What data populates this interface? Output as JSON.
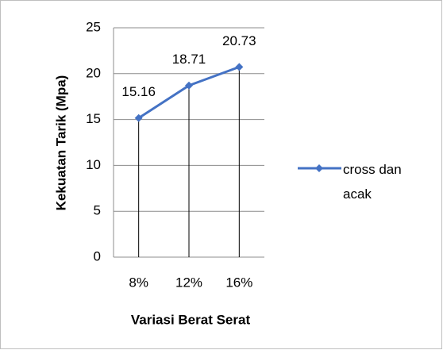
{
  "chart_data": {
    "type": "line",
    "categories": [
      "8%",
      "12%",
      "16%"
    ],
    "series": [
      {
        "name": "cross dan acak",
        "color": "#4472c4",
        "values": [
          15.16,
          18.71,
          20.73
        ]
      }
    ],
    "xlabel": "Variasi Berat Serat",
    "ylabel": "Kekuatan Tarik (Mpa)",
    "ylim": [
      0,
      25
    ],
    "yticks": [
      0,
      5,
      10,
      15,
      20,
      25
    ],
    "grid": true,
    "legend": "right",
    "drop_lines": true,
    "data_labels": true
  }
}
